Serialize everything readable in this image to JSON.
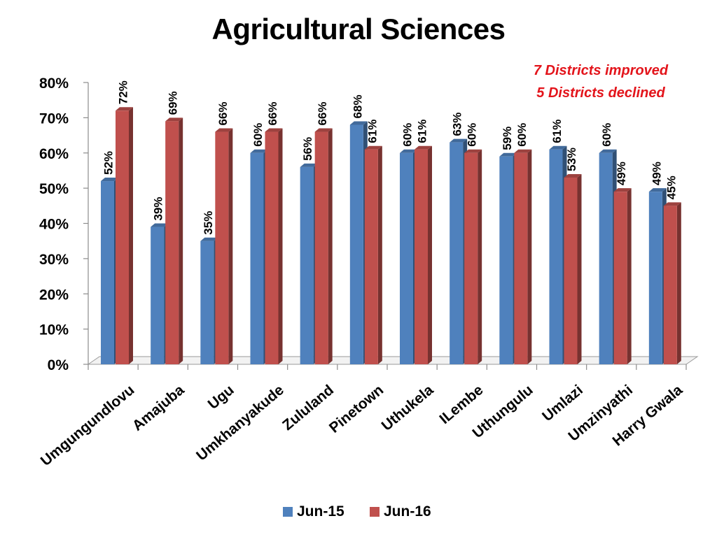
{
  "chart_data": {
    "type": "bar",
    "title": "Agricultural Sciences",
    "xlabel": "",
    "ylabel": "",
    "ylim": [
      0,
      80
    ],
    "yticks": [
      0,
      10,
      20,
      30,
      40,
      50,
      60,
      70,
      80
    ],
    "ytick_labels": [
      "0%",
      "10%",
      "20%",
      "30%",
      "40%",
      "50%",
      "60%",
      "70%",
      "80%"
    ],
    "categories": [
      "Umgungundlovu",
      "Amajuba",
      "Ugu",
      "Umkhanyakude",
      "Zululand",
      "Pinetown",
      "Uthukela",
      "ILembe",
      "Uthungulu",
      "Umlazi",
      "Umzinyathi",
      "Harry Gwala"
    ],
    "series": [
      {
        "name": "Jun-15",
        "color": "#4f81bd",
        "values": [
          52,
          39,
          35,
          60,
          56,
          68,
          60,
          63,
          59,
          61,
          60,
          49
        ],
        "labels": [
          "52%",
          "39%",
          "35%",
          "60%",
          "56%",
          "68%",
          "60%",
          "63%",
          "59%",
          "61%",
          "60%",
          "49%"
        ]
      },
      {
        "name": "Jun-16",
        "color": "#c0504d",
        "values": [
          72,
          69,
          66,
          66,
          66,
          61,
          61,
          60,
          60,
          53,
          49,
          45
        ],
        "labels": [
          "72%",
          "69%",
          "66%",
          "66%",
          "66%",
          "61%",
          "61%",
          "60%",
          "60%",
          "53%",
          "49%",
          "45%"
        ]
      }
    ],
    "legend_position": "bottom",
    "grid": false,
    "annotations": [
      "7 Districts improved",
      "5 Districts declined"
    ]
  }
}
